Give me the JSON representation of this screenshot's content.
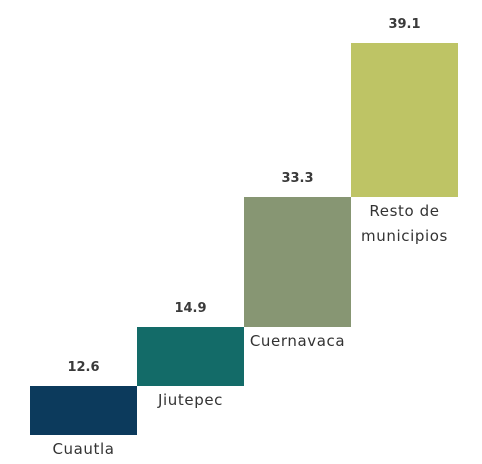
{
  "chart_data": {
    "type": "waterfall",
    "categories": [
      "Cuautla",
      "Jiutepec",
      "Cuernavaca",
      "Resto de municipios"
    ],
    "values": [
      12.6,
      14.9,
      33.3,
      39.1
    ],
    "colors": [
      "#0c3a5c",
      "#136b68",
      "#879673",
      "#bec465"
    ]
  }
}
